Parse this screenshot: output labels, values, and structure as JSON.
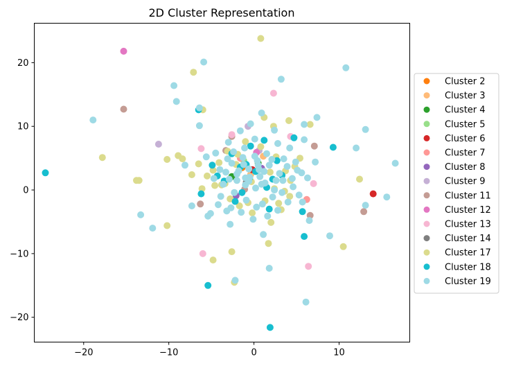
{
  "chart_data": {
    "type": "scatter",
    "title": "2D Cluster Representation",
    "xlabel": "",
    "ylabel": "",
    "xlim": [
      -25.8,
      18.3
    ],
    "ylim": [
      -23.9,
      26.2
    ],
    "xticks": [
      -20,
      -10,
      0,
      10
    ],
    "yticks": [
      -20,
      -10,
      0,
      10,
      20
    ],
    "grid": false,
    "legend_position": "right",
    "series": [
      {
        "name": "Cluster 2",
        "color": "#ff7f0e",
        "points": [
          [
            -1.4,
            3.5
          ]
        ]
      },
      {
        "name": "Cluster 3",
        "color": "#ffbb78",
        "points": [
          [
            -0.4,
            2.4
          ],
          [
            1.1,
            5.3
          ]
        ]
      },
      {
        "name": "Cluster 4",
        "color": "#2ca02c",
        "points": [
          [
            -2.6,
            2.1
          ],
          [
            0.5,
            4.2
          ]
        ]
      },
      {
        "name": "Cluster 5",
        "color": "#98df8a",
        "points": [
          [
            -1.2,
            4.6
          ]
        ]
      },
      {
        "name": "Cluster 6",
        "color": "#d62728",
        "points": [
          [
            14.0,
            -0.6
          ],
          [
            -0.2,
            3.2
          ]
        ]
      },
      {
        "name": "Cluster 7",
        "color": "#ff9896",
        "points": [
          [
            6.2,
            -1.5
          ],
          [
            -1.6,
            5.0
          ]
        ]
      },
      {
        "name": "Cluster 8",
        "color": "#9467bd",
        "points": [
          [
            -2.1,
            -0.9
          ],
          [
            0.9,
            3.4
          ]
        ]
      },
      {
        "name": "Cluster 9",
        "color": "#c5b0d5",
        "points": [
          [
            -11.2,
            7.2
          ],
          [
            -0.7,
            10.0
          ],
          [
            0.6,
            6.2
          ]
        ]
      },
      {
        "name": "Cluster 11",
        "color": "#c49c94",
        "points": [
          [
            -15.3,
            12.7
          ],
          [
            -6.3,
            -2.2
          ],
          [
            -3.3,
            6.2
          ],
          [
            7.1,
            6.9
          ],
          [
            6.6,
            -4.0
          ],
          [
            12.9,
            -3.4
          ],
          [
            -2.6,
            8.4
          ],
          [
            -1.1,
            0.1
          ]
        ]
      },
      {
        "name": "Cluster 12",
        "color": "#e377c2",
        "points": [
          [
            -15.3,
            21.8
          ],
          [
            0.3,
            5.9
          ]
        ]
      },
      {
        "name": "Cluster 13",
        "color": "#f7b6d2",
        "points": [
          [
            2.3,
            15.2
          ],
          [
            -6.2,
            6.5
          ],
          [
            -6.0,
            -10.0
          ],
          [
            6.4,
            -12.0
          ],
          [
            7.0,
            1.0
          ],
          [
            4.3,
            8.4
          ],
          [
            -2.6,
            8.7
          ]
        ]
      },
      {
        "name": "Cluster 14",
        "color": "#7f7f7f",
        "points": [
          [
            -0.9,
            1.2
          ]
        ]
      },
      {
        "name": "Cluster 17",
        "color": "#dbdb8d",
        "points": [
          [
            0.8,
            23.8
          ],
          [
            -7.1,
            18.5
          ],
          [
            -6.0,
            12.6
          ],
          [
            -17.8,
            5.1
          ],
          [
            -13.8,
            1.5
          ],
          [
            -13.5,
            1.5
          ],
          [
            -10.2,
            -5.6
          ],
          [
            -8.9,
            5.4
          ],
          [
            -8.4,
            4.9
          ],
          [
            -10.2,
            4.8
          ],
          [
            -6.1,
            0.2
          ],
          [
            -4.8,
            -11.0
          ],
          [
            -2.6,
            -9.7
          ],
          [
            -2.3,
            -14.5
          ],
          [
            1.7,
            -8.4
          ],
          [
            2.0,
            -5.1
          ],
          [
            2.3,
            10.0
          ],
          [
            4.1,
            10.9
          ],
          [
            3.7,
            3.0
          ],
          [
            6.6,
            10.3
          ],
          [
            10.5,
            -8.9
          ],
          [
            12.4,
            1.7
          ],
          [
            1.2,
            11.4
          ],
          [
            -3.1,
            6.1
          ],
          [
            -4.1,
            4.3
          ],
          [
            -4.8,
            3.1
          ],
          [
            -5.5,
            2.2
          ],
          [
            -3.4,
            1.0
          ],
          [
            -2.8,
            -1.4
          ],
          [
            -1.7,
            -2.5
          ],
          [
            -0.2,
            -3.6
          ],
          [
            1.3,
            -1.7
          ],
          [
            2.9,
            -2.1
          ],
          [
            3.6,
            -0.2
          ],
          [
            4.3,
            1.5
          ],
          [
            2.6,
            5.2
          ],
          [
            0.8,
            6.8
          ],
          [
            -1.0,
            7.6
          ],
          [
            -2.1,
            4.0
          ],
          [
            -3.8,
            0.8
          ],
          [
            5.4,
            5.0
          ],
          [
            4.8,
            3.7
          ],
          [
            3.2,
            -3.1
          ],
          [
            -0.7,
            -2.0
          ],
          [
            -4.6,
            0.7
          ],
          [
            -6.5,
            4.1
          ],
          [
            -7.3,
            2.4
          ],
          [
            -1.9,
            5.6
          ],
          [
            1.9,
            2.8
          ],
          [
            -0.3,
            1.3
          ],
          [
            2.4,
            0.2
          ],
          [
            4.2,
            -1.0
          ]
        ]
      },
      {
        "name": "Cluster 18",
        "color": "#17becf",
        "points": [
          [
            -24.5,
            2.7
          ],
          [
            -5.4,
            -15.0
          ],
          [
            1.9,
            -21.6
          ],
          [
            5.9,
            -7.3
          ],
          [
            9.3,
            6.7
          ],
          [
            5.7,
            -3.4
          ],
          [
            -6.5,
            12.6
          ],
          [
            -6.2,
            -0.6
          ],
          [
            -4.9,
            3.9
          ],
          [
            -2.6,
            5.7
          ],
          [
            -3.5,
            1.4
          ],
          [
            -1.4,
            -0.4
          ],
          [
            -0.5,
            1.9
          ],
          [
            1.5,
            0.4
          ],
          [
            1.8,
            -3.0
          ],
          [
            3.3,
            2.3
          ],
          [
            0.2,
            2.9
          ],
          [
            -0.9,
            4.0
          ],
          [
            1.2,
            7.8
          ],
          [
            2.7,
            4.6
          ],
          [
            -2.2,
            -1.8
          ],
          [
            -4.3,
            2.2
          ],
          [
            -0.4,
            6.9
          ],
          [
            2.2,
            1.7
          ],
          [
            4.7,
            8.2
          ],
          [
            -1.6,
            3.6
          ]
        ]
      },
      {
        "name": "Cluster 19",
        "color": "#9edae5",
        "points": [
          [
            10.8,
            19.2
          ],
          [
            -5.9,
            20.1
          ],
          [
            -9.4,
            16.4
          ],
          [
            3.2,
            17.4
          ],
          [
            -18.9,
            11.0
          ],
          [
            -9.1,
            13.9
          ],
          [
            -6.4,
            12.9
          ],
          [
            -6.4,
            10.1
          ],
          [
            -8.1,
            3.9
          ],
          [
            -7.3,
            -2.5
          ],
          [
            -11.9,
            -6.0
          ],
          [
            -13.3,
            -3.9
          ],
          [
            -5.4,
            -4.1
          ],
          [
            -2.8,
            -5.4
          ],
          [
            -2.2,
            -14.2
          ],
          [
            1.1,
            -7.0
          ],
          [
            1.8,
            -12.3
          ],
          [
            6.1,
            -17.6
          ],
          [
            8.9,
            -7.2
          ],
          [
            15.6,
            -1.1
          ],
          [
            13.1,
            -2.4
          ],
          [
            16.6,
            4.2
          ],
          [
            13.1,
            9.5
          ],
          [
            12.0,
            6.6
          ],
          [
            7.4,
            11.4
          ],
          [
            5.9,
            10.3
          ],
          [
            2.4,
            9.4
          ],
          [
            0.9,
            12.1
          ],
          [
            0.1,
            8.0
          ],
          [
            -1.1,
            6.6
          ],
          [
            -3.0,
            7.5
          ],
          [
            -4.5,
            5.8
          ],
          [
            -5.6,
            5.2
          ],
          [
            -4.0,
            3.2
          ],
          [
            -2.0,
            2.5
          ],
          [
            -0.6,
            3.3
          ],
          [
            0.7,
            2.1
          ],
          [
            1.8,
            3.9
          ],
          [
            3.5,
            4.9
          ],
          [
            5.1,
            3.1
          ],
          [
            6.3,
            1.9
          ],
          [
            7.2,
            4.4
          ],
          [
            5.9,
            7.9
          ],
          [
            4.2,
            6.6
          ],
          [
            2.8,
            7.3
          ],
          [
            1.5,
            5.7
          ],
          [
            0.4,
            4.6
          ],
          [
            -1.3,
            5.1
          ],
          [
            -2.6,
            4.2
          ],
          [
            -3.3,
            2.8
          ],
          [
            -2.0,
            1.5
          ],
          [
            -1.0,
            0.8
          ],
          [
            0.2,
            0.3
          ],
          [
            1.3,
            1.1
          ],
          [
            2.4,
            0.0
          ],
          [
            3.4,
            1.5
          ],
          [
            4.6,
            0.5
          ],
          [
            5.3,
            -0.8
          ],
          [
            4.0,
            -1.9
          ],
          [
            2.8,
            -3.2
          ],
          [
            1.6,
            -4.1
          ],
          [
            0.3,
            -2.7
          ],
          [
            -0.9,
            -1.6
          ],
          [
            -2.3,
            -0.4
          ],
          [
            -3.6,
            0.9
          ],
          [
            -4.7,
            1.8
          ],
          [
            -3.9,
            -1.0
          ],
          [
            -2.7,
            -2.8
          ],
          [
            -1.5,
            -3.5
          ],
          [
            -0.1,
            -4.6
          ],
          [
            1.0,
            -2.2
          ],
          [
            2.2,
            -1.1
          ],
          [
            3.3,
            -0.4
          ],
          [
            4.5,
            1.8
          ],
          [
            5.6,
            2.7
          ],
          [
            6.5,
            -4.8
          ],
          [
            5.7,
            -1.9
          ],
          [
            -1.6,
            9.3
          ],
          [
            -0.4,
            10.4
          ],
          [
            0.6,
            3.2
          ],
          [
            -0.5,
            2.0
          ],
          [
            -1.8,
            3.0
          ],
          [
            -2.9,
            1.7
          ],
          [
            -3.1,
            4.9
          ],
          [
            -1.2,
            4.0
          ],
          [
            0.1,
            5.3
          ],
          [
            1.2,
            2.9
          ],
          [
            2.1,
            4.8
          ],
          [
            3.0,
            2.6
          ],
          [
            3.9,
            3.7
          ],
          [
            -4.2,
            -2.3
          ],
          [
            -5.1,
            -3.7
          ],
          [
            -3.2,
            -3.3
          ],
          [
            -0.6,
            1.4
          ],
          [
            0.9,
            0.9
          ],
          [
            2.6,
            1.5
          ],
          [
            4.9,
            4.4
          ],
          [
            -2.4,
            6.0
          ],
          [
            -1.0,
            1.9
          ],
          [
            0.5,
            3.9
          ]
        ]
      }
    ]
  }
}
